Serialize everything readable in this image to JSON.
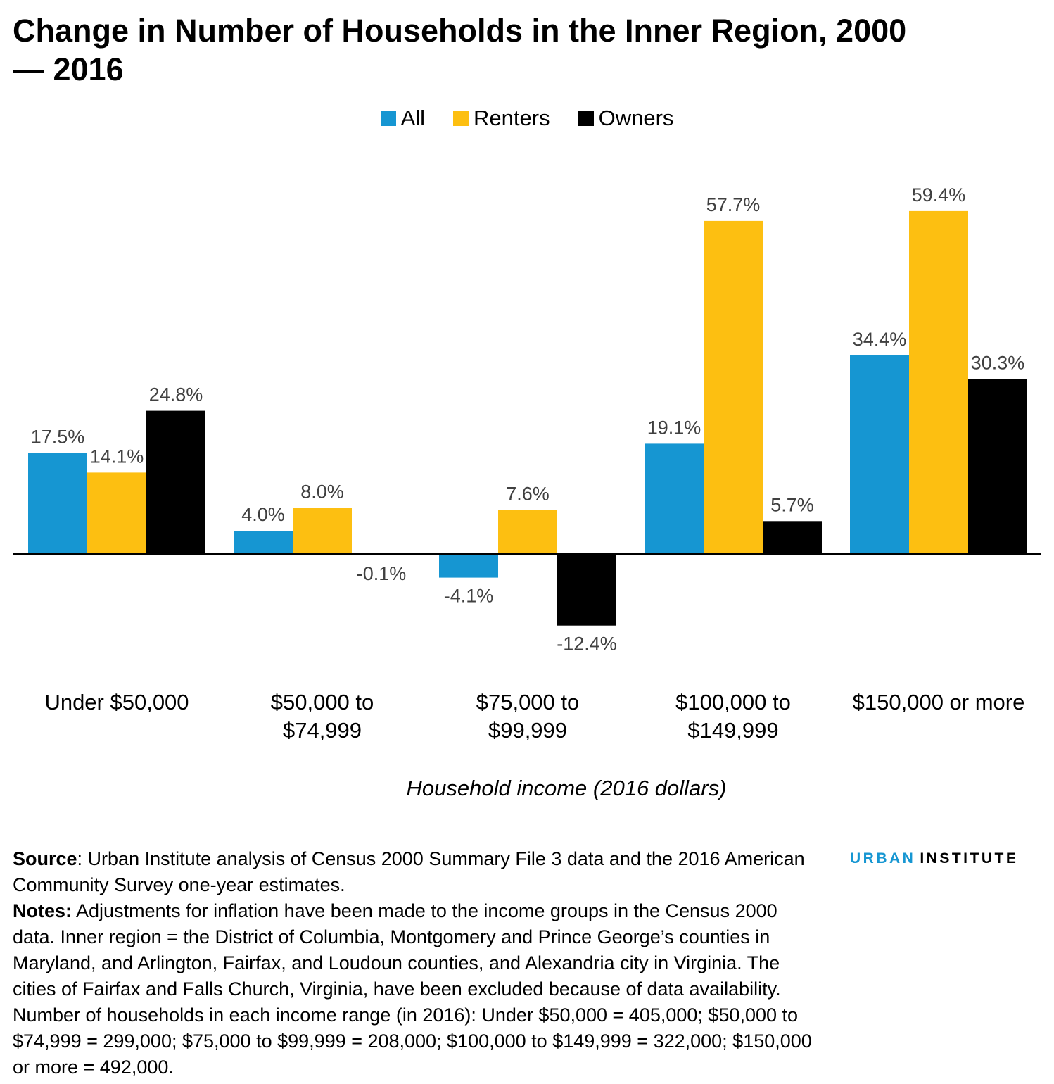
{
  "chart_data": {
    "type": "bar",
    "title": "Change in Number of Households in the Inner Region, 2000— 2016",
    "xlabel": "Household income (2016 dollars)",
    "ylabel": "",
    "categories": [
      [
        "Under $50,000"
      ],
      [
        "$50,000 to",
        "$74,999"
      ],
      [
        "$75,000 to",
        "$99,999"
      ],
      [
        "$100,000 to",
        "$149,999"
      ],
      [
        "$150,000 or more"
      ]
    ],
    "series": [
      {
        "name": "All",
        "color": "#1696d2",
        "values": [
          17.5,
          4.0,
          -4.1,
          19.1,
          34.4
        ],
        "labels": [
          "17.5%",
          "4.0%",
          "-4.1%",
          "19.1%",
          "34.4%"
        ]
      },
      {
        "name": "Renters",
        "color": "#fdbf11",
        "values": [
          14.1,
          8.0,
          7.6,
          57.7,
          59.4
        ],
        "labels": [
          "14.1%",
          "8.0%",
          "7.6%",
          "57.7%",
          "59.4%"
        ]
      },
      {
        "name": "Owners",
        "color": "#000000",
        "values": [
          24.8,
          -0.1,
          -12.4,
          5.7,
          30.3
        ],
        "labels": [
          "24.8%",
          "-0.1%",
          "-12.4%",
          "5.7%",
          "30.3%"
        ]
      }
    ],
    "ylim": [
      -20,
      70
    ],
    "grid": false,
    "legend": "top-center"
  },
  "footer": {
    "source_label": "Source",
    "source_text": ": Urban Institute analysis of Census 2000 Summary File 3 data and the 2016 American Community Survey one-year estimates.",
    "notes_label": "Notes:",
    "notes_text": " Adjustments for inflation have been made to the income groups in the Census 2000 data. Inner region = the District of Columbia, Montgomery and Prince George’s counties in Maryland, and Arlington, Fairfax, and Loudoun counties, and Alexandria city in Virginia. The cities of Fairfax and Falls Church, Virginia, have been excluded because of data availability. Number of households in each income range (in 2016): Under $50,000 = 405,000; $50,000 to $74,999 = 299,000; $75,000 to $99,999 = 208,000; $100,000 to $149,999 = 322,000; $150,000 or more = 492,000."
  },
  "logo": {
    "part1": "URBAN",
    "part2": "INSTITUTE"
  }
}
